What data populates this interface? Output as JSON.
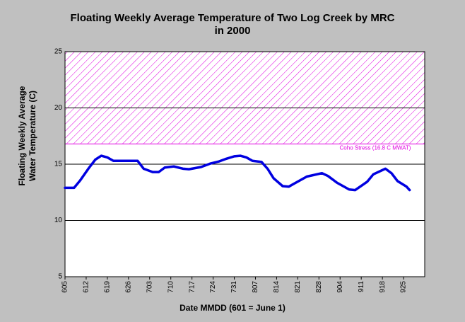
{
  "chart_data": {
    "type": "line",
    "title": [
      "Floating Weekly Average Temperature of Two Log Creek by MRC",
      "in 2000"
    ],
    "y_label": [
      "Floating Weekly Average",
      "Water Temperature (C)"
    ],
    "x_label": "Date MMDD (601 = June 1)",
    "xlim": [
      4,
      123
    ],
    "xticks": [
      {
        "value": 4,
        "label": "605"
      },
      {
        "value": 11,
        "label": "612"
      },
      {
        "value": 18,
        "label": "619"
      },
      {
        "value": 25,
        "label": "626"
      },
      {
        "value": 32,
        "label": "703"
      },
      {
        "value": 39,
        "label": "710"
      },
      {
        "value": 46,
        "label": "717"
      },
      {
        "value": 53,
        "label": "724"
      },
      {
        "value": 60,
        "label": "731"
      },
      {
        "value": 67,
        "label": "807"
      },
      {
        "value": 74,
        "label": "814"
      },
      {
        "value": 81,
        "label": "821"
      },
      {
        "value": 88,
        "label": "828"
      },
      {
        "value": 95,
        "label": "904"
      },
      {
        "value": 102,
        "label": "911"
      },
      {
        "value": 109,
        "label": "918"
      },
      {
        "value": 116,
        "label": "925"
      }
    ],
    "ylim": [
      5,
      25
    ],
    "yticks": [
      5,
      10,
      15,
      20,
      25
    ],
    "grid": true,
    "series": [
      {
        "color": "#0000e0",
        "x": [
          4,
          7,
          9,
          12,
          14,
          16,
          18,
          20,
          22,
          24,
          28,
          30,
          33,
          35,
          37,
          40,
          43,
          45,
          49,
          52,
          55,
          57,
          60,
          62,
          64,
          66,
          69,
          71,
          73,
          76,
          78,
          80,
          84,
          89,
          91,
          94,
          98,
          100,
          104,
          106,
          110,
          112,
          114,
          117,
          118
        ],
        "values": [
          12.9,
          12.9,
          13.55,
          14.7,
          15.4,
          15.75,
          15.6,
          15.3,
          15.3,
          15.3,
          15.3,
          14.6,
          14.3,
          14.3,
          14.7,
          14.8,
          14.6,
          14.55,
          14.75,
          15.05,
          15.25,
          15.45,
          15.7,
          15.75,
          15.6,
          15.3,
          15.2,
          14.6,
          13.75,
          13.05,
          13.0,
          13.3,
          13.9,
          14.2,
          13.95,
          13.35,
          12.75,
          12.7,
          13.45,
          14.1,
          14.6,
          14.2,
          13.5,
          13.0,
          12.7
        ]
      }
    ],
    "annotations": [
      {
        "text": "Coho Stress (16.8 C MWAT)",
        "y": 16.8,
        "color": "#e000e0"
      }
    ]
  }
}
